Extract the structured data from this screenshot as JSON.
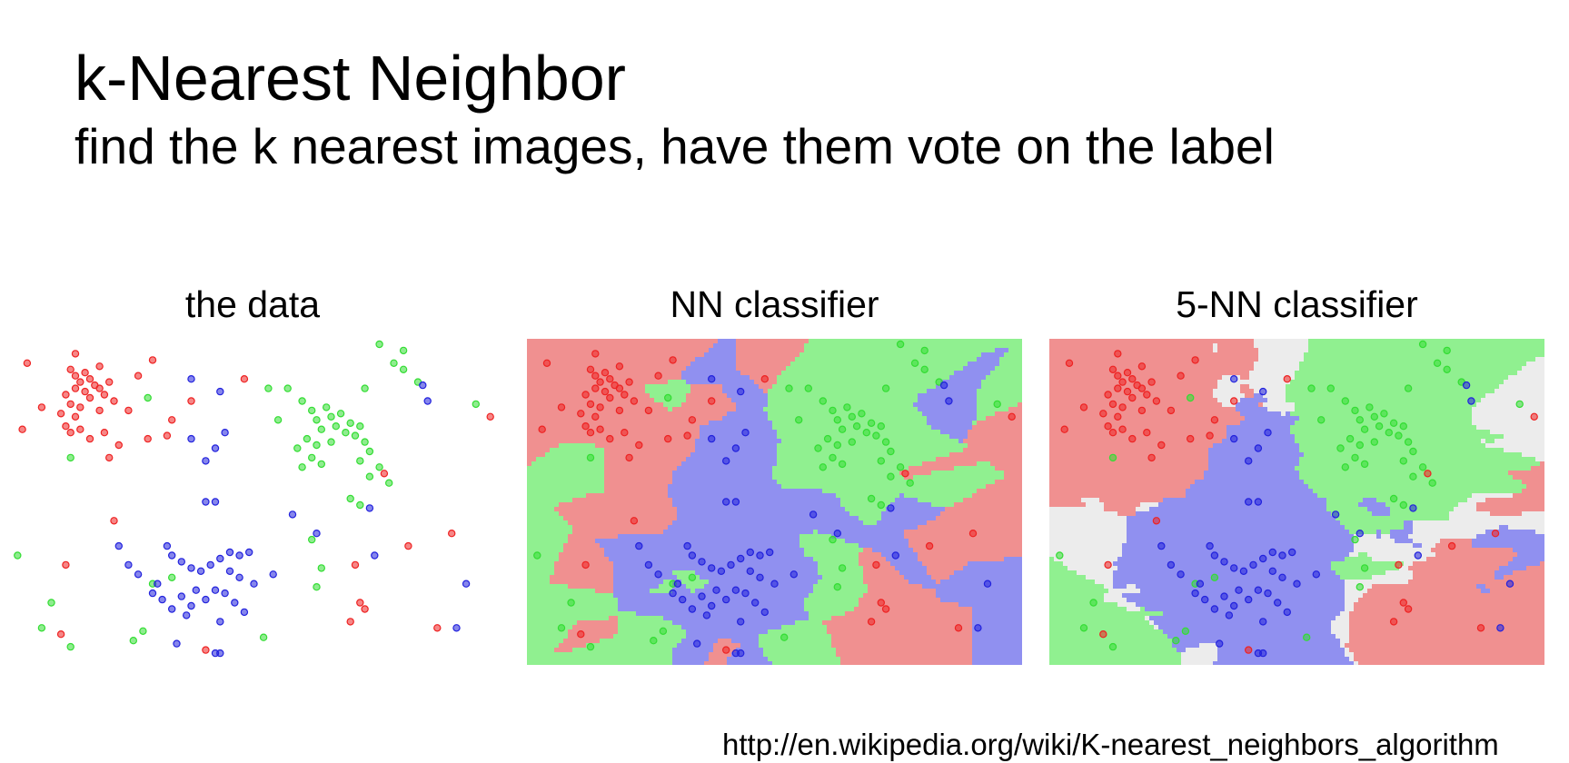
{
  "slide": {
    "title": "k-Nearest Neighbor",
    "subtitle": "find the k nearest images, have them vote on the label",
    "source_url": "http://en.wikipedia.org/wiki/K-nearest_neighbors_algorithm"
  },
  "panels": [
    {
      "id": "data",
      "caption": "the data",
      "background": "none"
    },
    {
      "id": "nn",
      "caption": "NN classifier",
      "background": "1-nearest-neighbor decision regions"
    },
    {
      "id": "5nn",
      "caption": "5-NN classifier",
      "background": "5-nearest-neighbor decision regions with tie regions"
    }
  ],
  "colors": {
    "red_point": "#ee2222",
    "green_point": "#33dd33",
    "blue_point": "#2222dd",
    "red_region": "#f09090",
    "green_region": "#90f090",
    "blue_region": "#9090f0",
    "tie_region": "#ececec"
  },
  "chart_data": {
    "type": "scatter",
    "xlim": [
      0,
      1
    ],
    "ylim": [
      0,
      1
    ],
    "series": [
      {
        "color": "red",
        "points": [
          [
            0.12,
            0.92
          ],
          [
            0.13,
            0.9
          ],
          [
            0.14,
            0.88
          ],
          [
            0.15,
            0.91
          ],
          [
            0.16,
            0.89
          ],
          [
            0.17,
            0.87
          ],
          [
            0.15,
            0.85
          ],
          [
            0.13,
            0.86
          ],
          [
            0.11,
            0.84
          ],
          [
            0.12,
            0.81
          ],
          [
            0.14,
            0.8
          ],
          [
            0.16,
            0.83
          ],
          [
            0.18,
            0.86
          ],
          [
            0.19,
            0.84
          ],
          [
            0.2,
            0.88
          ],
          [
            0.21,
            0.82
          ],
          [
            0.18,
            0.79
          ],
          [
            0.1,
            0.78
          ],
          [
            0.11,
            0.74
          ],
          [
            0.13,
            0.77
          ],
          [
            0.12,
            0.72
          ],
          [
            0.14,
            0.73
          ],
          [
            0.16,
            0.7
          ],
          [
            0.19,
            0.72
          ],
          [
            0.22,
            0.68
          ],
          [
            0.2,
            0.64
          ],
          [
            0.24,
            0.79
          ],
          [
            0.26,
            0.9
          ],
          [
            0.29,
            0.95
          ],
          [
            0.03,
            0.94
          ],
          [
            0.02,
            0.73
          ],
          [
            0.06,
            0.8
          ],
          [
            0.13,
            0.97
          ],
          [
            0.18,
            0.93
          ],
          [
            0.28,
            0.7
          ],
          [
            0.33,
            0.76
          ],
          [
            0.32,
            0.71
          ],
          [
            0.37,
            0.82
          ],
          [
            0.48,
            0.89
          ],
          [
            0.91,
            0.4
          ],
          [
            0.21,
            0.44
          ],
          [
            0.11,
            0.3
          ],
          [
            0.72,
            0.18
          ],
          [
            0.73,
            0.16
          ],
          [
            0.7,
            0.12
          ],
          [
            0.82,
            0.36
          ],
          [
            0.88,
            0.1
          ],
          [
            0.1,
            0.08
          ],
          [
            0.4,
            0.03
          ],
          [
            0.99,
            0.77
          ],
          [
            0.77,
            0.59
          ],
          [
            0.71,
            0.3
          ]
        ]
      },
      {
        "color": "green",
        "points": [
          [
            0.6,
            0.82
          ],
          [
            0.62,
            0.79
          ],
          [
            0.63,
            0.76
          ],
          [
            0.65,
            0.8
          ],
          [
            0.66,
            0.77
          ],
          [
            0.64,
            0.73
          ],
          [
            0.67,
            0.74
          ],
          [
            0.68,
            0.78
          ],
          [
            0.69,
            0.72
          ],
          [
            0.7,
            0.75
          ],
          [
            0.71,
            0.71
          ],
          [
            0.72,
            0.74
          ],
          [
            0.73,
            0.69
          ],
          [
            0.74,
            0.66
          ],
          [
            0.66,
            0.69
          ],
          [
            0.63,
            0.68
          ],
          [
            0.61,
            0.7
          ],
          [
            0.59,
            0.67
          ],
          [
            0.62,
            0.64
          ],
          [
            0.6,
            0.61
          ],
          [
            0.64,
            0.62
          ],
          [
            0.72,
            0.63
          ],
          [
            0.76,
            0.61
          ],
          [
            0.74,
            0.58
          ],
          [
            0.78,
            0.56
          ],
          [
            0.7,
            0.51
          ],
          [
            0.72,
            0.49
          ],
          [
            0.55,
            0.76
          ],
          [
            0.53,
            0.86
          ],
          [
            0.57,
            0.86
          ],
          [
            0.76,
            1.0
          ],
          [
            0.79,
            0.94
          ],
          [
            0.81,
            0.92
          ],
          [
            0.84,
            0.88
          ],
          [
            0.73,
            0.86
          ],
          [
            0.81,
            0.98
          ],
          [
            0.96,
            0.81
          ],
          [
            0.28,
            0.83
          ],
          [
            0.12,
            0.64
          ],
          [
            0.01,
            0.33
          ],
          [
            0.08,
            0.18
          ],
          [
            0.06,
            0.1
          ],
          [
            0.12,
            0.04
          ],
          [
            0.27,
            0.09
          ],
          [
            0.29,
            0.24
          ],
          [
            0.33,
            0.26
          ],
          [
            0.52,
            0.07
          ],
          [
            0.64,
            0.29
          ],
          [
            0.63,
            0.23
          ],
          [
            0.25,
            0.06
          ],
          [
            0.62,
            0.38
          ]
        ]
      },
      {
        "color": "blue",
        "points": [
          [
            0.37,
            0.89
          ],
          [
            0.43,
            0.85
          ],
          [
            0.44,
            0.72
          ],
          [
            0.42,
            0.67
          ],
          [
            0.37,
            0.7
          ],
          [
            0.4,
            0.63
          ],
          [
            0.4,
            0.5
          ],
          [
            0.42,
            0.5
          ],
          [
            0.74,
            0.48
          ],
          [
            0.58,
            0.46
          ],
          [
            0.63,
            0.4
          ],
          [
            0.75,
            0.33
          ],
          [
            0.85,
            0.87
          ],
          [
            0.86,
            0.82
          ],
          [
            0.22,
            0.36
          ],
          [
            0.24,
            0.3
          ],
          [
            0.26,
            0.27
          ],
          [
            0.3,
            0.24
          ],
          [
            0.32,
            0.36
          ],
          [
            0.33,
            0.33
          ],
          [
            0.35,
            0.31
          ],
          [
            0.37,
            0.29
          ],
          [
            0.39,
            0.28
          ],
          [
            0.41,
            0.3
          ],
          [
            0.43,
            0.32
          ],
          [
            0.45,
            0.34
          ],
          [
            0.47,
            0.33
          ],
          [
            0.49,
            0.34
          ],
          [
            0.5,
            0.24
          ],
          [
            0.47,
            0.26
          ],
          [
            0.45,
            0.28
          ],
          [
            0.42,
            0.22
          ],
          [
            0.4,
            0.19
          ],
          [
            0.37,
            0.17
          ],
          [
            0.35,
            0.2
          ],
          [
            0.33,
            0.16
          ],
          [
            0.36,
            0.14
          ],
          [
            0.38,
            0.22
          ],
          [
            0.44,
            0.21
          ],
          [
            0.46,
            0.18
          ],
          [
            0.48,
            0.15
          ],
          [
            0.43,
            0.12
          ],
          [
            0.31,
            0.19
          ],
          [
            0.29,
            0.21
          ],
          [
            0.54,
            0.27
          ],
          [
            0.42,
            0.02
          ],
          [
            0.43,
            0.02
          ],
          [
            0.94,
            0.24
          ],
          [
            0.92,
            0.1
          ],
          [
            0.34,
            0.05
          ]
        ]
      }
    ]
  }
}
